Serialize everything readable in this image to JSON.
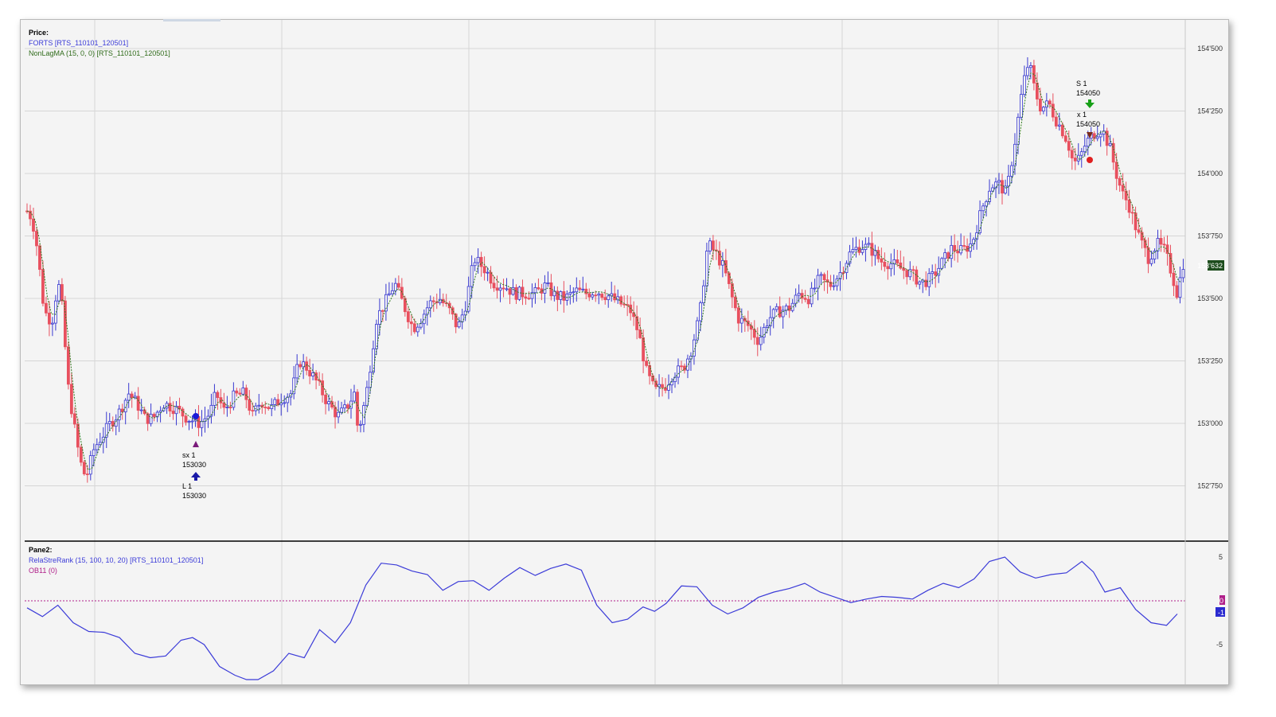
{
  "price_pane": {
    "title": "Price:",
    "series": [
      {
        "label": "FORTS [RTS_110101_120501]",
        "color": "#3b3bd8"
      },
      {
        "label": "NonLagMA (15, 0, 0) [RTS_110101_120501]",
        "color": "#2f6b1a"
      }
    ],
    "y_ticks": [
      "154'500",
      "154'250",
      "154'000",
      "153'750",
      "153'500",
      "153'250",
      "153'000",
      "152'750"
    ],
    "last_price": "153'632",
    "up_color": "#3838d0",
    "down_color": "#e8505f",
    "ma_color": "#2f7a1f",
    "trade_labels": [
      {
        "id": "sx",
        "line1": "sx 1",
        "line2": "153030"
      },
      {
        "id": "L",
        "line1": "L 1",
        "line2": "153030"
      },
      {
        "id": "S",
        "line1": "S 1",
        "line2": "154050"
      },
      {
        "id": "lx",
        "line1": "x 1",
        "line2": "154050"
      }
    ]
  },
  "indicator_pane": {
    "title": "Pane2:",
    "series": [
      {
        "label": "RelaStreRank (15, 100, 10, 20) [RTS_110101_120501]",
        "color": "#3b3bd8"
      },
      {
        "label": "OB11 (0)",
        "color": "#b0208a"
      }
    ],
    "y_ticks": [
      "5",
      "-5"
    ],
    "value_badges": [
      "0",
      "-1"
    ]
  },
  "chart_data": {
    "type": "candlestick",
    "price_range": [
      152600,
      154600
    ],
    "grid": true,
    "candles_count": 365,
    "trend_path": [
      [
        0,
        153850
      ],
      [
        5,
        153820
      ],
      [
        10,
        153700
      ],
      [
        16,
        153480
      ],
      [
        20,
        153420
      ],
      [
        26,
        153420
      ],
      [
        30,
        153580
      ],
      [
        35,
        153450
      ],
      [
        40,
        153160
      ],
      [
        46,
        153000
      ],
      [
        52,
        152850
      ],
      [
        58,
        152780
      ],
      [
        66,
        152900
      ],
      [
        74,
        152950
      ],
      [
        82,
        153000
      ],
      [
        90,
        153040
      ],
      [
        100,
        153120
      ],
      [
        108,
        153080
      ],
      [
        116,
        153020
      ],
      [
        124,
        153020
      ],
      [
        134,
        153080
      ],
      [
        146,
        153060
      ],
      [
        158,
        153020
      ],
      [
        170,
        153000
      ],
      [
        180,
        153040
      ],
      [
        186,
        153120
      ],
      [
        194,
        153050
      ],
      [
        204,
        153110
      ],
      [
        214,
        153120
      ],
      [
        222,
        153030
      ],
      [
        230,
        153090
      ],
      [
        240,
        153060
      ],
      [
        250,
        153100
      ],
      [
        260,
        153120
      ],
      [
        268,
        153250
      ],
      [
        276,
        153220
      ],
      [
        286,
        153160
      ],
      [
        296,
        153080
      ],
      [
        306,
        153030
      ],
      [
        314,
        153060
      ],
      [
        322,
        153120
      ],
      [
        326,
        152960
      ],
      [
        334,
        153120
      ],
      [
        344,
        153420
      ],
      [
        352,
        153480
      ],
      [
        362,
        153560
      ],
      [
        370,
        153480
      ],
      [
        380,
        153380
      ],
      [
        388,
        153420
      ],
      [
        396,
        153480
      ],
      [
        406,
        153500
      ],
      [
        416,
        153450
      ],
      [
        424,
        153380
      ],
      [
        432,
        153480
      ],
      [
        440,
        153660
      ],
      [
        450,
        153620
      ],
      [
        460,
        153560
      ],
      [
        470,
        153550
      ],
      [
        480,
        153520
      ],
      [
        490,
        153520
      ],
      [
        500,
        153520
      ],
      [
        510,
        153550
      ],
      [
        520,
        153510
      ],
      [
        530,
        153500
      ],
      [
        540,
        153530
      ],
      [
        550,
        153520
      ],
      [
        560,
        153530
      ],
      [
        572,
        153510
      ],
      [
        584,
        153480
      ],
      [
        594,
        153450
      ],
      [
        602,
        153360
      ],
      [
        610,
        153200
      ],
      [
        618,
        153130
      ],
      [
        628,
        153150
      ],
      [
        636,
        153200
      ],
      [
        646,
        153220
      ],
      [
        654,
        153300
      ],
      [
        662,
        153430
      ],
      [
        670,
        153720
      ],
      [
        678,
        153680
      ],
      [
        686,
        153620
      ],
      [
        692,
        153530
      ],
      [
        700,
        153420
      ],
      [
        710,
        153390
      ],
      [
        720,
        153330
      ],
      [
        730,
        153420
      ],
      [
        740,
        153450
      ],
      [
        750,
        153460
      ],
      [
        760,
        153520
      ],
      [
        770,
        153500
      ],
      [
        780,
        153580
      ],
      [
        790,
        153550
      ],
      [
        800,
        153600
      ],
      [
        810,
        153680
      ],
      [
        820,
        153710
      ],
      [
        830,
        153700
      ],
      [
        840,
        153650
      ],
      [
        850,
        153640
      ],
      [
        860,
        153620
      ],
      [
        870,
        153600
      ],
      [
        880,
        153560
      ],
      [
        890,
        153580
      ],
      [
        900,
        153640
      ],
      [
        910,
        153700
      ],
      [
        920,
        153690
      ],
      [
        930,
        153720
      ],
      [
        940,
        153860
      ],
      [
        948,
        153950
      ],
      [
        956,
        153960
      ],
      [
        964,
        153920
      ],
      [
        972,
        154120
      ],
      [
        980,
        154350
      ],
      [
        986,
        154450
      ],
      [
        992,
        154330
      ],
      [
        998,
        154260
      ],
      [
        1006,
        154280
      ],
      [
        1012,
        154220
      ],
      [
        1018,
        154180
      ],
      [
        1024,
        154130
      ],
      [
        1030,
        154040
      ],
      [
        1036,
        154060
      ],
      [
        1042,
        154120
      ],
      [
        1050,
        154160
      ],
      [
        1058,
        154180
      ],
      [
        1066,
        154100
      ],
      [
        1072,
        154000
      ],
      [
        1078,
        153920
      ],
      [
        1084,
        153880
      ],
      [
        1090,
        153800
      ],
      [
        1096,
        153730
      ],
      [
        1104,
        153660
      ],
      [
        1112,
        153720
      ],
      [
        1120,
        153690
      ],
      [
        1126,
        153610
      ],
      [
        1132,
        153520
      ],
      [
        1138,
        153640
      ]
    ],
    "ma_color": "#2f7a1f",
    "indicator": {
      "name": "RelaStreRank (15, 100, 10, 20)",
      "level": 0,
      "y_ticks": [
        5,
        -5
      ],
      "points": [
        [
          0,
          -0.8
        ],
        [
          20,
          -1.8
        ],
        [
          40,
          -0.5
        ],
        [
          60,
          -2.5
        ],
        [
          80,
          -3.5
        ],
        [
          100,
          -3.6
        ],
        [
          120,
          -4.2
        ],
        [
          140,
          -6.0
        ],
        [
          160,
          -6.5
        ],
        [
          180,
          -6.3
        ],
        [
          200,
          -4.5
        ],
        [
          215,
          -4.2
        ],
        [
          230,
          -5.0
        ],
        [
          250,
          -7.5
        ],
        [
          270,
          -8.5
        ],
        [
          285,
          -9.0
        ],
        [
          300,
          -9.0
        ],
        [
          320,
          -8.0
        ],
        [
          340,
          -6.0
        ],
        [
          360,
          -6.5
        ],
        [
          380,
          -3.3
        ],
        [
          400,
          -4.8
        ],
        [
          420,
          -2.5
        ],
        [
          440,
          1.8
        ],
        [
          460,
          4.3
        ],
        [
          480,
          4.1
        ],
        [
          500,
          3.4
        ],
        [
          520,
          3.0
        ],
        [
          540,
          1.2
        ],
        [
          560,
          2.2
        ],
        [
          580,
          2.3
        ],
        [
          600,
          1.2
        ],
        [
          620,
          2.6
        ],
        [
          640,
          3.8
        ],
        [
          660,
          2.9
        ],
        [
          680,
          3.7
        ],
        [
          700,
          4.2
        ],
        [
          720,
          3.5
        ],
        [
          740,
          -0.5
        ],
        [
          760,
          -2.5
        ],
        [
          780,
          -2.1
        ],
        [
          800,
          -0.7
        ],
        [
          815,
          -1.2
        ],
        [
          830,
          -0.3
        ],
        [
          850,
          1.7
        ],
        [
          870,
          1.6
        ],
        [
          890,
          -0.5
        ],
        [
          910,
          -1.5
        ],
        [
          930,
          -0.8
        ],
        [
          950,
          0.4
        ],
        [
          970,
          1.0
        ],
        [
          990,
          1.4
        ],
        [
          1010,
          2.0
        ],
        [
          1030,
          1.0
        ],
        [
          1050,
          0.4
        ],
        [
          1070,
          -0.2
        ],
        [
          1090,
          0.2
        ],
        [
          1110,
          0.5
        ],
        [
          1130,
          0.4
        ],
        [
          1150,
          0.2
        ],
        [
          1170,
          1.2
        ],
        [
          1190,
          2.0
        ],
        [
          1210,
          1.5
        ],
        [
          1230,
          2.5
        ],
        [
          1250,
          4.5
        ],
        [
          1270,
          5.0
        ],
        [
          1290,
          3.3
        ],
        [
          1310,
          2.6
        ],
        [
          1330,
          3.0
        ],
        [
          1350,
          3.2
        ],
        [
          1370,
          4.5
        ],
        [
          1385,
          3.3
        ],
        [
          1400,
          1.0
        ],
        [
          1420,
          1.5
        ],
        [
          1440,
          -1.0
        ],
        [
          1460,
          -2.5
        ],
        [
          1480,
          -2.8
        ],
        [
          1494,
          -1.5
        ]
      ]
    }
  }
}
